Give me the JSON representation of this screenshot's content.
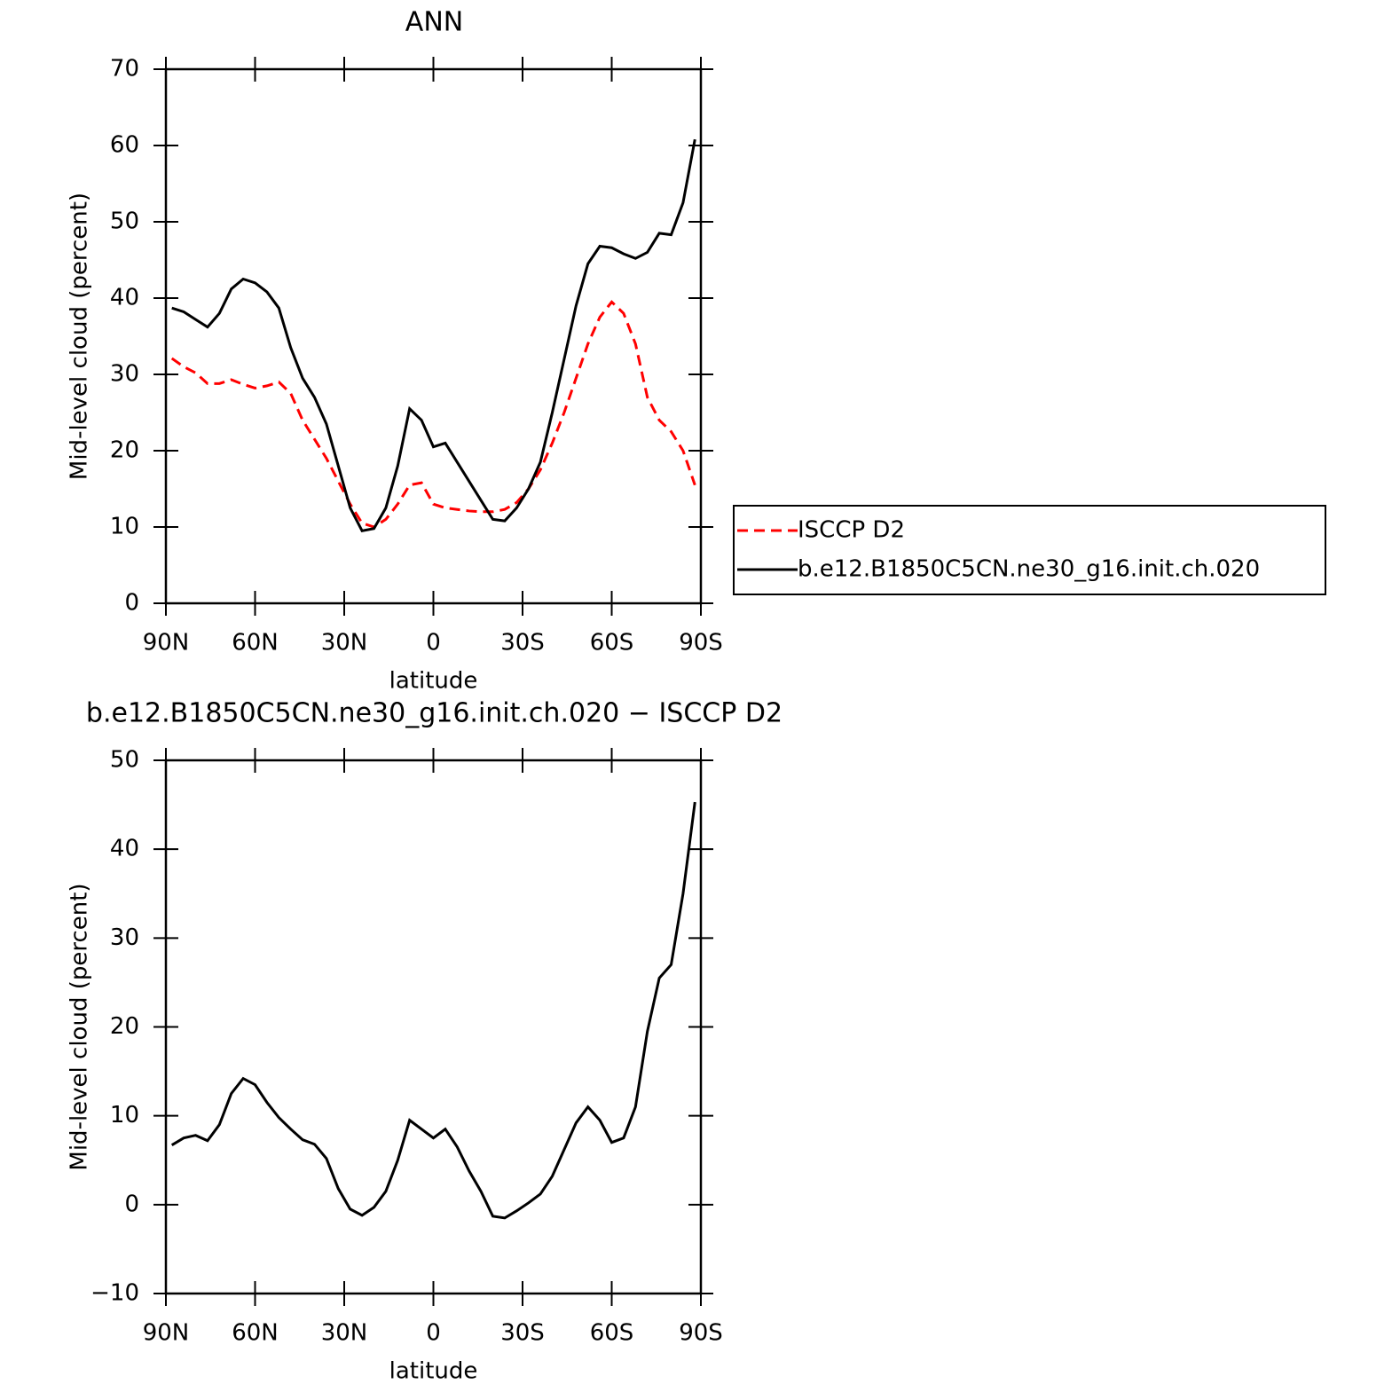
{
  "chart_data": [
    {
      "type": "line",
      "title": "ANN",
      "xlabel": "latitude",
      "ylabel": "Mid-level cloud (percent)",
      "x": [
        88,
        84,
        80,
        76,
        72,
        68,
        64,
        60,
        56,
        52,
        48,
        44,
        40,
        36,
        32,
        28,
        24,
        20,
        16,
        12,
        8,
        4,
        0,
        -4,
        -8,
        -12,
        -16,
        -20,
        -24,
        -28,
        -32,
        -36,
        -40,
        -44,
        -48,
        -52,
        -56,
        -60,
        -64,
        -68,
        -72,
        -76,
        -80,
        -84,
        -88
      ],
      "xlim": [
        90,
        -90
      ],
      "xticks": [
        {
          "value": 90,
          "label": "90N"
        },
        {
          "value": 60,
          "label": "60N"
        },
        {
          "value": 30,
          "label": "30N"
        },
        0,
        {
          "value": -30,
          "label": "30S"
        },
        {
          "value": -60,
          "label": "60S"
        },
        {
          "value": -90,
          "label": "90S"
        }
      ],
      "ylim": [
        0,
        70
      ],
      "yticks": [
        0,
        10,
        20,
        30,
        40,
        50,
        60,
        70
      ],
      "legend": "right",
      "series": [
        {
          "name": "ISCCP D2",
          "color": "#ff0000",
          "style": "dashed",
          "values": [
            32.1,
            31,
            30.2,
            28.8,
            28.8,
            29.3,
            28.7,
            28.2,
            28.5,
            29,
            27.5,
            24,
            21.5,
            19,
            16,
            13,
            10.5,
            10,
            11,
            13,
            15.5,
            15.8,
            13,
            12.5,
            12.3,
            12.1,
            12,
            12,
            12.3,
            13.2,
            15,
            17.5,
            21,
            25,
            29.5,
            34,
            37.5,
            39.5,
            38,
            34,
            27,
            24,
            22.5,
            20,
            15.5
          ]
        },
        {
          "name": "b.e12.B1850C5CN.ne30_g16.init.ch.020",
          "color": "#000000",
          "style": "solid",
          "values": [
            38.7,
            38.2,
            37.2,
            36.2,
            38,
            41.2,
            42.5,
            42,
            40.8,
            38.7,
            33.5,
            29.5,
            27,
            23.5,
            18,
            12.5,
            9.5,
            9.8,
            12.5,
            18,
            25.5,
            24,
            20.5,
            21,
            18.5,
            16,
            13.5,
            11,
            10.8,
            12.5,
            15,
            18.5,
            25,
            32,
            39,
            44.5,
            46.8,
            46.6,
            45.8,
            45.2,
            46,
            48.5,
            48.3,
            52.5,
            60.8
          ]
        }
      ]
    },
    {
      "type": "line",
      "title": "b.e12.B1850C5CN.ne30_g16.init.ch.020 − ISCCP D2",
      "xlabel": "latitude",
      "ylabel": "Mid-level cloud (percent)",
      "x": [
        88,
        84,
        80,
        76,
        72,
        68,
        64,
        60,
        56,
        52,
        48,
        44,
        40,
        36,
        32,
        28,
        24,
        20,
        16,
        12,
        8,
        4,
        0,
        -4,
        -8,
        -12,
        -16,
        -20,
        -24,
        -28,
        -32,
        -36,
        -40,
        -44,
        -48,
        -52,
        -56,
        -60,
        -64,
        -68,
        -72,
        -76,
        -80,
        -84,
        -88
      ],
      "xlim": [
        90,
        -90
      ],
      "xticks": [
        {
          "value": 90,
          "label": "90N"
        },
        {
          "value": 60,
          "label": "60N"
        },
        {
          "value": 30,
          "label": "30N"
        },
        0,
        {
          "value": -30,
          "label": "30S"
        },
        {
          "value": -60,
          "label": "60S"
        },
        {
          "value": -90,
          "label": "90S"
        }
      ],
      "ylim": [
        -10,
        50
      ],
      "yticks": [
        {
          "value": -10,
          "label": "−10"
        },
        0,
        10,
        20,
        30,
        40,
        50
      ],
      "series": [
        {
          "color": "#000000",
          "style": "solid",
          "values": [
            6.7,
            7.5,
            7.8,
            7.2,
            9,
            12.5,
            14.2,
            13.5,
            11.5,
            9.8,
            8.5,
            7.3,
            6.8,
            5.2,
            1.8,
            -0.5,
            -1.2,
            -0.3,
            1.5,
            5,
            9.5,
            8.5,
            7.5,
            8.5,
            6.5,
            3.8,
            1.5,
            -1.3,
            -1.5,
            -0.7,
            0.2,
            1.2,
            3.2,
            6.2,
            9.2,
            11,
            9.5,
            7,
            7.5,
            11,
            19.5,
            25.5,
            27,
            35,
            45.3
          ]
        }
      ]
    }
  ]
}
